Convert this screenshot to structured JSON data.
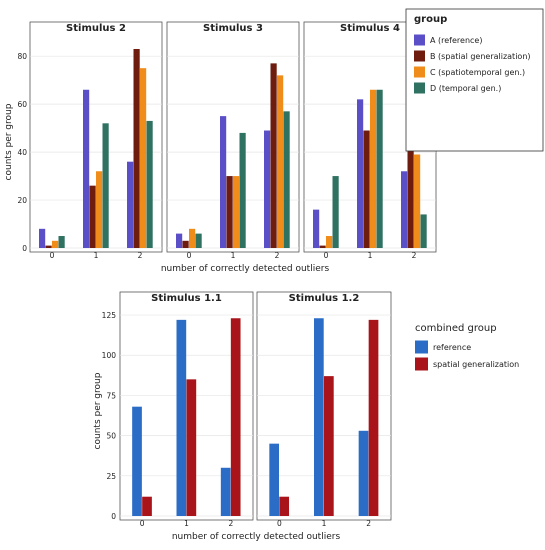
{
  "chart_data": [
    {
      "type": "bar",
      "panel_titles": [
        "Stimulus 2",
        "Stimulus 3",
        "Stimulus 4"
      ],
      "categories": [
        "0",
        "1",
        "2"
      ],
      "xlabel": "number of correctly detected outliers",
      "ylabel": "counts per group",
      "ylim": [
        0,
        88
      ],
      "yticks": [
        0,
        20,
        40,
        60,
        80
      ],
      "legend": {
        "title": "group",
        "placement": "right"
      },
      "series": [
        {
          "name": "A (reference)",
          "color": "#5b4fc8",
          "panels": [
            [
              8,
              66,
              36
            ],
            [
              6,
              55,
              49
            ],
            [
              16,
              62,
              32
            ]
          ]
        },
        {
          "name": "B (spatial generalization)",
          "color": "#6e1c0e",
          "panels": [
            [
              1,
              26,
              83
            ],
            [
              3,
              30,
              77
            ],
            [
              1,
              49,
              59
            ]
          ]
        },
        {
          "name": "C (spatiotemporal gen.)",
          "color": "#f08c1a",
          "panels": [
            [
              3,
              32,
              75
            ],
            [
              8,
              30,
              72
            ],
            [
              5,
              66,
              39
            ]
          ]
        },
        {
          "name": "D (temporal gen.)",
          "color": "#2f7262",
          "panels": [
            [
              5,
              52,
              53
            ],
            [
              6,
              48,
              57
            ],
            [
              30,
              66,
              14
            ]
          ]
        }
      ]
    },
    {
      "type": "bar",
      "panel_titles": [
        "Stimulus 1.1",
        "Stimulus 1.2"
      ],
      "categories": [
        "0",
        "1",
        "2"
      ],
      "xlabel": "number of correctly detected outliers",
      "ylabel": "counts per group",
      "ylim": [
        0,
        130
      ],
      "yticks": [
        0,
        25,
        50,
        75,
        100,
        125
      ],
      "legend": {
        "title": "combined group",
        "placement": "right"
      },
      "series": [
        {
          "name": "reference",
          "color": "#2a6cc6",
          "panels": [
            [
              68,
              122,
              30
            ],
            [
              45,
              123,
              53
            ]
          ]
        },
        {
          "name": "spatial generalization",
          "color": "#a8141a",
          "panels": [
            [
              12,
              85,
              123
            ],
            [
              12,
              87,
              122
            ]
          ]
        }
      ]
    }
  ]
}
